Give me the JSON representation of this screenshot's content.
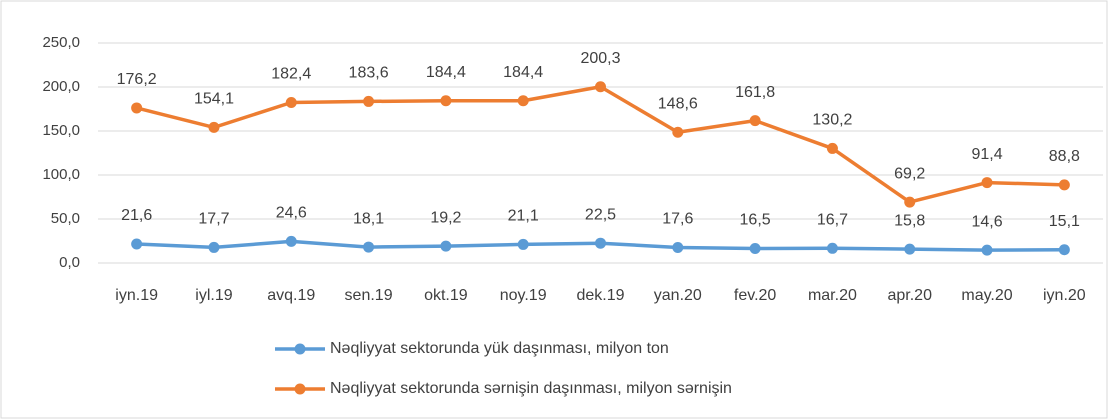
{
  "chart_data": {
    "type": "line",
    "categories": [
      "iyn.19",
      "iyl.19",
      "avq.19",
      "sen.19",
      "okt.19",
      "noy.19",
      "dek.19",
      "yan.20",
      "fev.20",
      "mar.20",
      "apr.20",
      "may.20",
      "iyn.20"
    ],
    "series": [
      {
        "name": "Nəqliyyat sektorunda yük daşınması, milyon ton",
        "color": "#5b9bd5",
        "values": [
          21.6,
          17.7,
          24.6,
          18.1,
          19.2,
          21.1,
          22.5,
          17.6,
          16.5,
          16.7,
          15.8,
          14.6,
          15.1
        ],
        "value_labels": [
          "21,6",
          "17,7",
          "24,6",
          "18,1",
          "19,2",
          "21,1",
          "22,5",
          "17,6",
          "16,5",
          "16,7",
          "15,8",
          "14,6",
          "15,1"
        ]
      },
      {
        "name": "Nəqliyyat sektorunda sərnişin daşınması, milyon sərnişin",
        "color": "#ed7d31",
        "values": [
          176.2,
          154.1,
          182.4,
          183.6,
          184.4,
          184.4,
          200.3,
          148.6,
          161.8,
          130.2,
          69.2,
          91.4,
          88.8
        ],
        "value_labels": [
          "176,2",
          "154,1",
          "182,4",
          "183,6",
          "184,4",
          "184,4",
          "200,3",
          "148,6",
          "161,8",
          "130,2",
          "69,2",
          "91,4",
          "88,8"
        ]
      }
    ],
    "ylim": [
      0,
      250
    ],
    "yticks": [
      {
        "value": 0,
        "label": "0,0"
      },
      {
        "value": 50,
        "label": "50,0"
      },
      {
        "value": 100,
        "label": "100,0"
      },
      {
        "value": 150,
        "label": "150,0"
      },
      {
        "value": 200,
        "label": "200,0"
      },
      {
        "value": 250,
        "label": "250,0"
      }
    ],
    "grid": true,
    "legend": "bottom"
  }
}
